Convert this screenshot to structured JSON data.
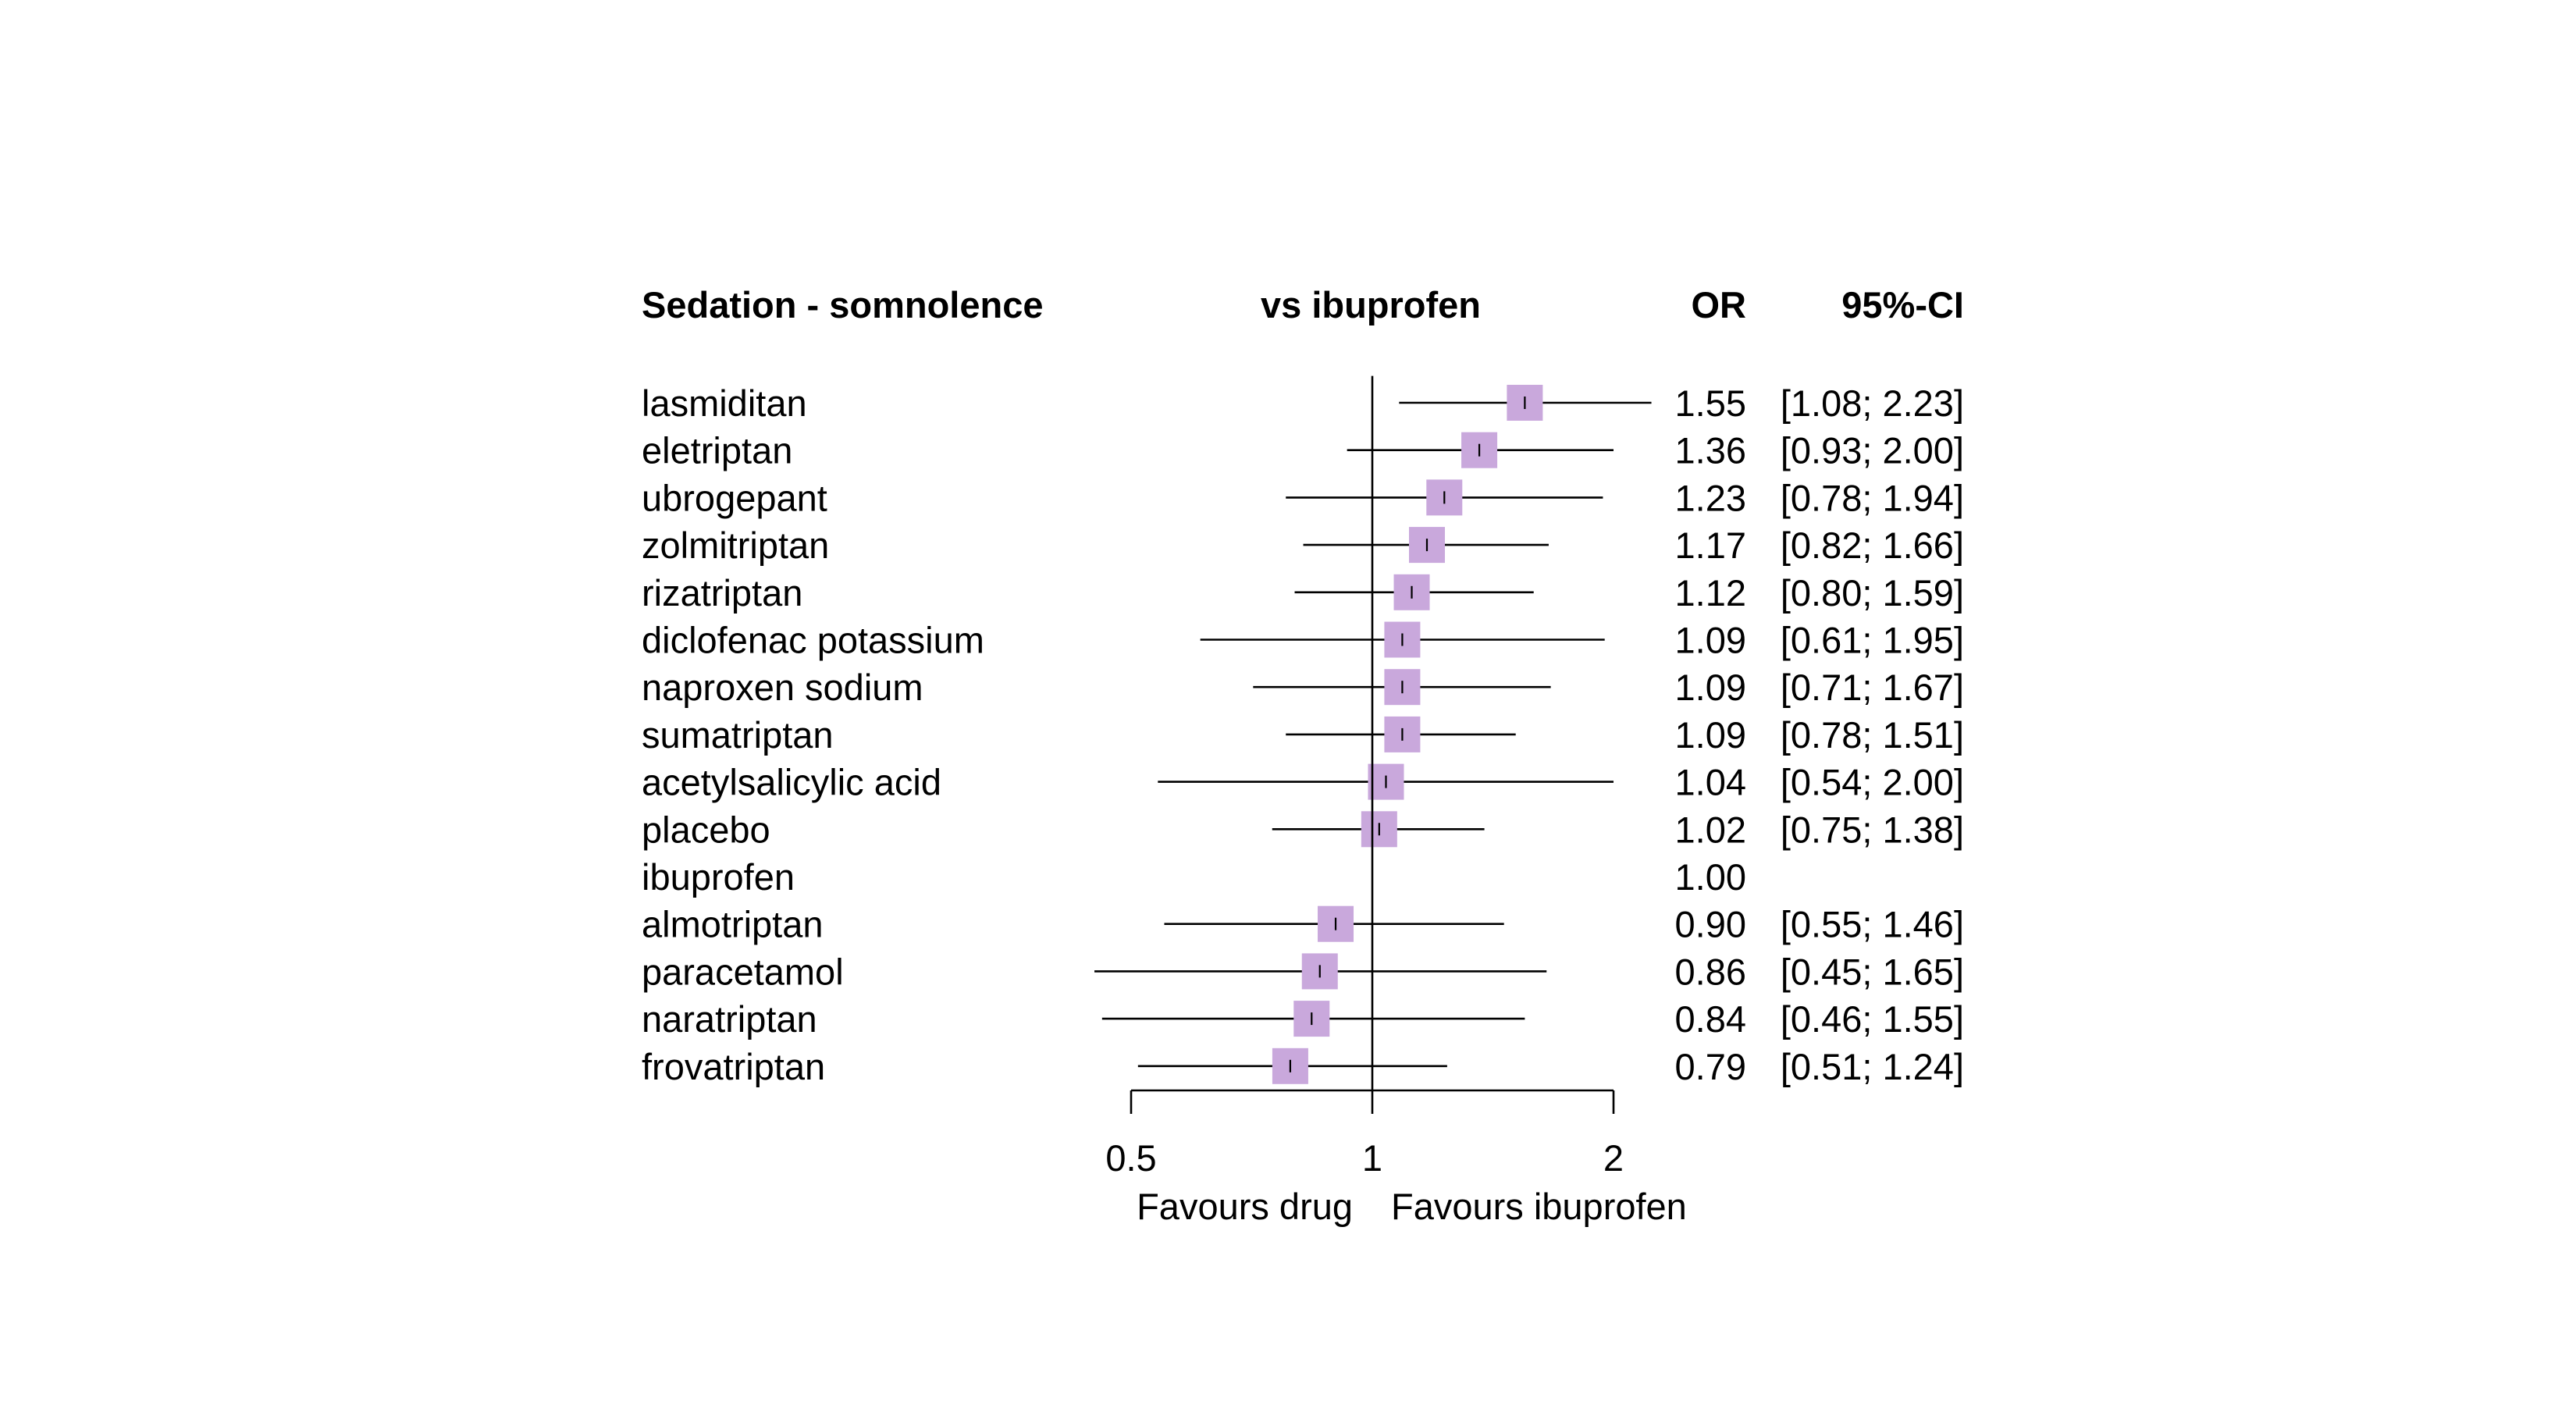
{
  "chart_data": {
    "type": "forest",
    "headers": {
      "outcome": "Sedation - somnolence",
      "comparison": "vs ibuprofen",
      "estimate": "OR",
      "ci": "95%-CI"
    },
    "xscale": "log",
    "xlim": [
      0.5,
      2
    ],
    "reference_value": 1,
    "xticks": [
      {
        "value": 0.5,
        "label": "0.5"
      },
      {
        "value": 1,
        "label": "1"
      },
      {
        "value": 2,
        "label": "2"
      }
    ],
    "xlabels": {
      "left": "Favours drug",
      "right": "Favours ibuprofen"
    },
    "marker_color": "#c9a8dc",
    "rows": [
      {
        "name": "lasmiditan",
        "or": 1.55,
        "lower": 1.08,
        "upper": 2.23,
        "or_label": "1.55",
        "ci_label": "[1.08; 2.23]"
      },
      {
        "name": "eletriptan",
        "or": 1.36,
        "lower": 0.93,
        "upper": 2.0,
        "or_label": "1.36",
        "ci_label": "[0.93; 2.00]"
      },
      {
        "name": "ubrogepant",
        "or": 1.23,
        "lower": 0.78,
        "upper": 1.94,
        "or_label": "1.23",
        "ci_label": "[0.78; 1.94]"
      },
      {
        "name": "zolmitriptan",
        "or": 1.17,
        "lower": 0.82,
        "upper": 1.66,
        "or_label": "1.17",
        "ci_label": "[0.82; 1.66]"
      },
      {
        "name": "rizatriptan",
        "or": 1.12,
        "lower": 0.8,
        "upper": 1.59,
        "or_label": "1.12",
        "ci_label": "[0.80; 1.59]"
      },
      {
        "name": "diclofenac potassium",
        "or": 1.09,
        "lower": 0.61,
        "upper": 1.95,
        "or_label": "1.09",
        "ci_label": "[0.61; 1.95]"
      },
      {
        "name": "naproxen sodium",
        "or": 1.09,
        "lower": 0.71,
        "upper": 1.67,
        "or_label": "1.09",
        "ci_label": "[0.71; 1.67]"
      },
      {
        "name": "sumatriptan",
        "or": 1.09,
        "lower": 0.78,
        "upper": 1.51,
        "or_label": "1.09",
        "ci_label": "[0.78; 1.51]"
      },
      {
        "name": "acetylsalicylic acid",
        "or": 1.04,
        "lower": 0.54,
        "upper": 2.0,
        "or_label": "1.04",
        "ci_label": "[0.54; 2.00]"
      },
      {
        "name": "placebo",
        "or": 1.02,
        "lower": 0.75,
        "upper": 1.38,
        "or_label": "1.02",
        "ci_label": "[0.75; 1.38]"
      },
      {
        "name": "ibuprofen",
        "or": 1.0,
        "lower": null,
        "upper": null,
        "or_label": "1.00",
        "ci_label": ""
      },
      {
        "name": "almotriptan",
        "or": 0.9,
        "lower": 0.55,
        "upper": 1.46,
        "or_label": "0.90",
        "ci_label": "[0.55; 1.46]"
      },
      {
        "name": "paracetamol",
        "or": 0.86,
        "lower": 0.45,
        "upper": 1.65,
        "or_label": "0.86",
        "ci_label": "[0.45; 1.65]"
      },
      {
        "name": "naratriptan",
        "or": 0.84,
        "lower": 0.46,
        "upper": 1.55,
        "or_label": "0.84",
        "ci_label": "[0.46; 1.55]"
      },
      {
        "name": "frovatriptan",
        "or": 0.79,
        "lower": 0.51,
        "upper": 1.24,
        "or_label": "0.79",
        "ci_label": "[0.51; 1.24]"
      }
    ]
  }
}
